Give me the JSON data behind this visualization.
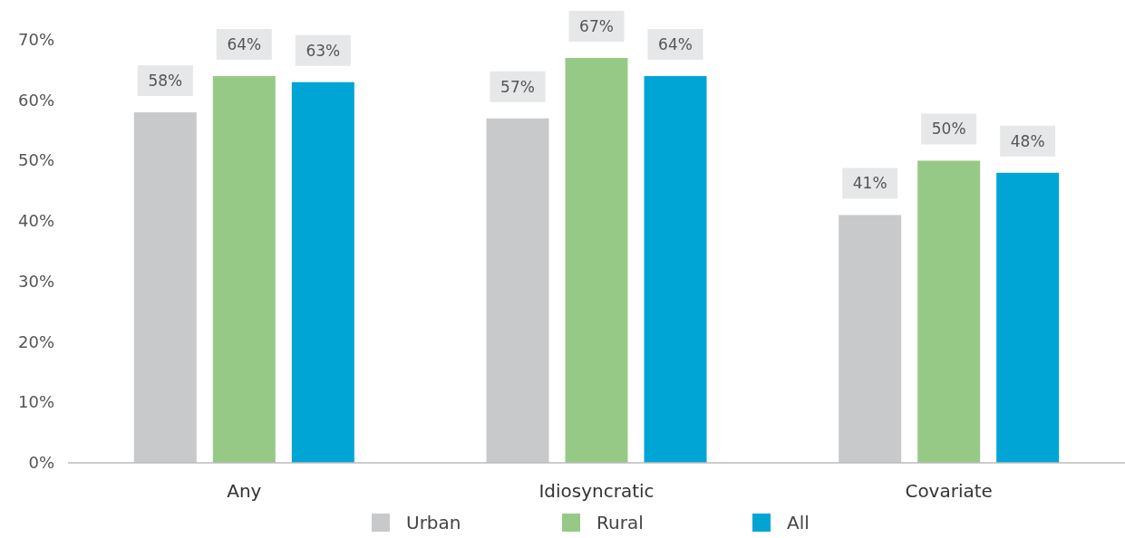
{
  "chart_data": {
    "type": "bar",
    "categories": [
      "Any",
      "Idiosyncratic",
      "Covariate"
    ],
    "series": [
      {
        "name": "Urban",
        "color": "#c8c9cb",
        "values": [
          58,
          57,
          41
        ],
        "value_labels": [
          "58%",
          "57%",
          "41%"
        ]
      },
      {
        "name": "Rural",
        "color": "#97c986",
        "values": [
          64,
          67,
          50
        ],
        "value_labels": [
          "64%",
          "67%",
          "50%"
        ]
      },
      {
        "name": "All",
        "color": "#00a5d6",
        "values": [
          63,
          64,
          48
        ],
        "value_labels": [
          "63%",
          "64%",
          "48%"
        ]
      }
    ],
    "ylim": [
      0,
      70
    ],
    "yticks": [
      {
        "value": 0,
        "label": "0%"
      },
      {
        "value": 10,
        "label": "10%"
      },
      {
        "value": 20,
        "label": "20%"
      },
      {
        "value": 30,
        "label": "30%"
      },
      {
        "value": 40,
        "label": "40%"
      },
      {
        "value": 50,
        "label": "50%"
      },
      {
        "value": 60,
        "label": "60%"
      },
      {
        "value": 70,
        "label": "70%"
      }
    ],
    "grid": false,
    "legend": "bottom"
  }
}
